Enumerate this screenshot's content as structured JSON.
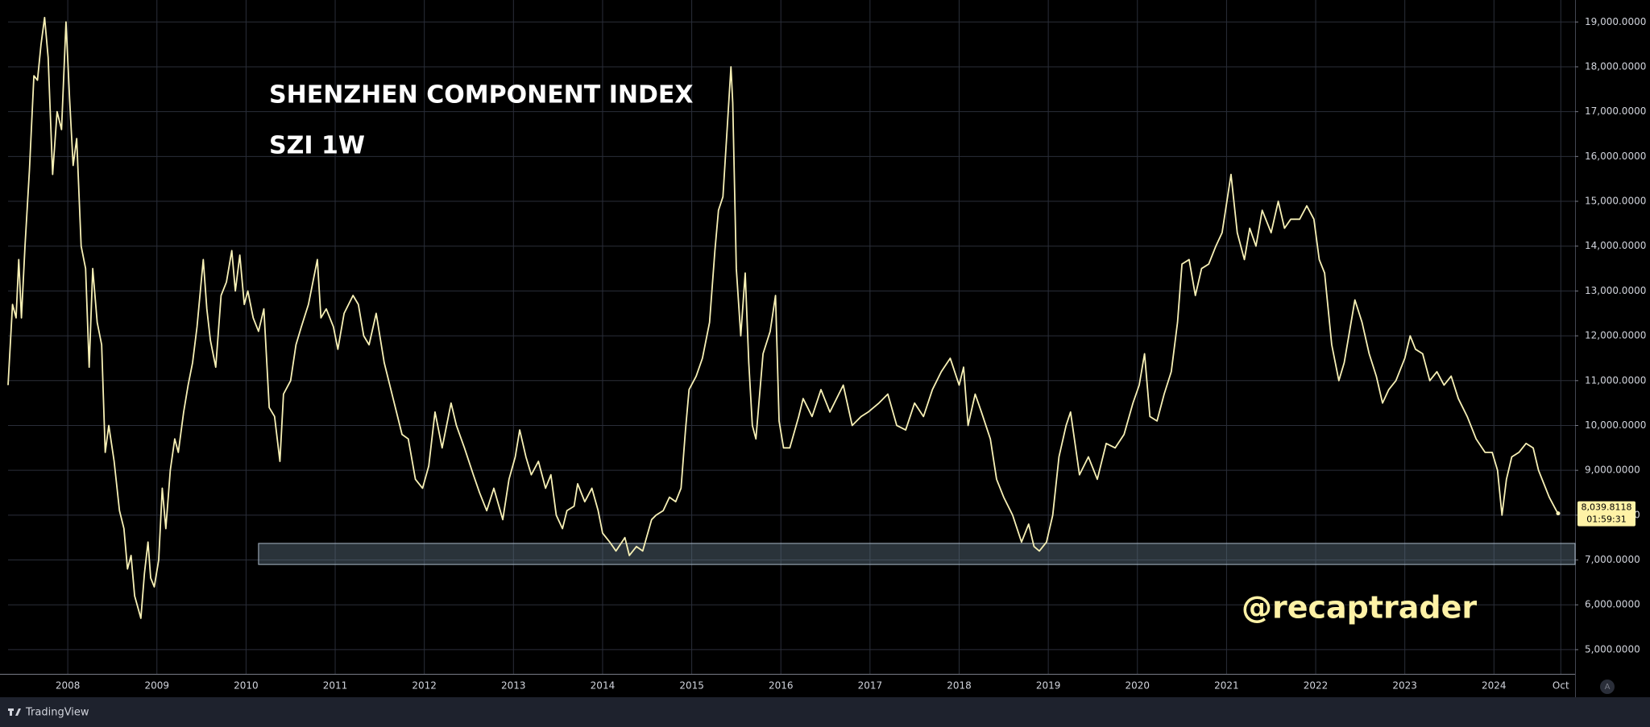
{
  "chart_data": {
    "type": "line",
    "title": "SHENZHEN COMPONENT INDEX",
    "subtitle": "SZI 1W",
    "watermark": "@recaptrader",
    "brand": "TradingView",
    "scale_button": "A",
    "grid": true,
    "xlim": [
      2007.33,
      2024.91
    ],
    "ylim": [
      4460,
      19490
    ],
    "xticks": [
      2008,
      2009,
      2010,
      2011,
      2012,
      2013,
      2014,
      2015,
      2016,
      2017,
      2018,
      2019,
      2020,
      2021,
      2022,
      2023,
      2024,
      {
        "value": 2024.75,
        "label": "Oct"
      }
    ],
    "yticks": [
      {
        "value": 5000,
        "label": "5,000.0000"
      },
      {
        "value": 6000,
        "label": "6,000.0000"
      },
      {
        "value": 7000,
        "label": "7,000.0000"
      },
      {
        "value": 8000,
        "label": "8,000.0000"
      },
      {
        "value": 9000,
        "label": "9,000.0000"
      },
      {
        "value": 10000,
        "label": "10,000.0000"
      },
      {
        "value": 11000,
        "label": "11,000.0000"
      },
      {
        "value": 12000,
        "label": "12,000.0000"
      },
      {
        "value": 13000,
        "label": "13,000.0000"
      },
      {
        "value": 14000,
        "label": "14,000.0000"
      },
      {
        "value": 15000,
        "label": "15,000.0000"
      },
      {
        "value": 16000,
        "label": "16,000.0000"
      },
      {
        "value": 17000,
        "label": "17,000.0000"
      },
      {
        "value": 18000,
        "label": "18,000.0000"
      },
      {
        "value": 19000,
        "label": "19,000.0000"
      }
    ],
    "last_price": {
      "value": 8039.8118,
      "label": "8,039.8118"
    },
    "countdown": "01:59:31",
    "zone": {
      "start": 2010.14,
      "low": 6900,
      "high": 7370,
      "color": "#5d7080"
    },
    "x": [
      2007.33,
      2007.38,
      2007.42,
      2007.45,
      2007.48,
      2007.52,
      2007.57,
      2007.62,
      2007.66,
      2007.7,
      2007.74,
      2007.78,
      2007.83,
      2007.88,
      2007.93,
      2007.98,
      2008.02,
      2008.06,
      2008.1,
      2008.15,
      2008.2,
      2008.24,
      2008.28,
      2008.33,
      2008.38,
      2008.42,
      2008.46,
      2008.52,
      2008.58,
      2008.63,
      2008.67,
      2008.71,
      2008.75,
      2008.82,
      2008.86,
      2008.9,
      2008.93,
      2008.97,
      2009.02,
      2009.06,
      2009.1,
      2009.15,
      2009.2,
      2009.24,
      2009.3,
      2009.35,
      2009.4,
      2009.45,
      2009.52,
      2009.56,
      2009.6,
      2009.66,
      2009.72,
      2009.78,
      2009.84,
      2009.88,
      2009.93,
      2009.98,
      2010.02,
      2010.08,
      2010.14,
      2010.2,
      2010.26,
      2010.32,
      2010.38,
      2010.42,
      2010.5,
      2010.56,
      2010.62,
      2010.7,
      2010.8,
      2010.84,
      2010.9,
      2010.98,
      2011.03,
      2011.1,
      2011.2,
      2011.26,
      2011.32,
      2011.38,
      2011.46,
      2011.55,
      2011.65,
      2011.75,
      2011.82,
      2011.9,
      2011.98,
      2012.05,
      2012.12,
      2012.2,
      2012.3,
      2012.36,
      2012.45,
      2012.55,
      2012.62,
      2012.7,
      2012.78,
      2012.88,
      2012.95,
      2013.02,
      2013.07,
      2013.14,
      2013.2,
      2013.28,
      2013.36,
      2013.42,
      2013.48,
      2013.55,
      2013.6,
      2013.68,
      2013.72,
      2013.8,
      2013.88,
      2013.95,
      2014.0,
      2014.08,
      2014.15,
      2014.25,
      2014.3,
      2014.38,
      2014.45,
      2014.55,
      2014.6,
      2014.68,
      2014.75,
      2014.82,
      2014.88,
      2014.93,
      2014.97,
      2015.05,
      2015.12,
      2015.2,
      2015.26,
      2015.3,
      2015.35,
      2015.4,
      2015.44,
      2015.46,
      2015.5,
      2015.55,
      2015.6,
      2015.64,
      2015.68,
      2015.72,
      2015.8,
      2015.88,
      2015.94,
      2015.98,
      2016.03,
      2016.1,
      2016.2,
      2016.25,
      2016.35,
      2016.45,
      2016.55,
      2016.7,
      2016.8,
      2016.9,
      2016.98,
      2017.1,
      2017.2,
      2017.3,
      2017.4,
      2017.5,
      2017.6,
      2017.7,
      2017.8,
      2017.9,
      2017.95,
      2018.0,
      2018.05,
      2018.1,
      2018.18,
      2018.25,
      2018.35,
      2018.42,
      2018.5,
      2018.6,
      2018.7,
      2018.78,
      2018.84,
      2018.9,
      2018.98,
      2019.05,
      2019.12,
      2019.2,
      2019.25,
      2019.35,
      2019.45,
      2019.55,
      2019.65,
      2019.75,
      2019.85,
      2019.95,
      2020.02,
      2020.08,
      2020.14,
      2020.22,
      2020.3,
      2020.38,
      2020.45,
      2020.5,
      2020.58,
      2020.65,
      2020.72,
      2020.8,
      2020.88,
      2020.95,
      2021.05,
      2021.12,
      2021.2,
      2021.26,
      2021.33,
      2021.4,
      2021.5,
      2021.58,
      2021.65,
      2021.72,
      2021.82,
      2021.9,
      2021.98,
      2022.04,
      2022.1,
      2022.18,
      2022.26,
      2022.32,
      2022.38,
      2022.44,
      2022.52,
      2022.6,
      2022.68,
      2022.75,
      2022.82,
      2022.9,
      2023.0,
      2023.06,
      2023.12,
      2023.2,
      2023.28,
      2023.36,
      2023.44,
      2023.52,
      2023.6,
      2023.7,
      2023.8,
      2023.9,
      2023.98,
      2024.04,
      2024.09,
      2024.14,
      2024.2,
      2024.28,
      2024.36,
      2024.44,
      2024.5,
      2024.56,
      2024.62,
      2024.7,
      2024.72
    ],
    "series": [
      {
        "name": "SZI",
        "color": "#f7f0b5",
        "values": [
          10900,
          12700,
          12400,
          13700,
          12400,
          14000,
          15700,
          17800,
          17700,
          18500,
          19100,
          18200,
          15600,
          17000,
          16600,
          19000,
          17300,
          15800,
          16400,
          14000,
          13500,
          11300,
          13500,
          12300,
          11800,
          9400,
          10000,
          9200,
          8100,
          7700,
          6800,
          7100,
          6200,
          5700,
          6700,
          7400,
          6600,
          6400,
          7000,
          8600,
          7700,
          9000,
          9700,
          9400,
          10300,
          10900,
          11400,
          12200,
          13700,
          12600,
          11900,
          11300,
          12900,
          13200,
          13900,
          13000,
          13800,
          12700,
          13000,
          12400,
          12100,
          12600,
          10400,
          10200,
          9200,
          10700,
          11000,
          11800,
          12200,
          12700,
          13700,
          12400,
          12600,
          12200,
          11700,
          12500,
          12900,
          12700,
          12000,
          11800,
          12500,
          11400,
          10600,
          9800,
          9700,
          8800,
          8600,
          9100,
          10300,
          9500,
          10500,
          10000,
          9500,
          8900,
          8500,
          8100,
          8600,
          7900,
          8800,
          9300,
          9900,
          9300,
          8900,
          9200,
          8600,
          8900,
          8000,
          7700,
          8100,
          8200,
          8700,
          8300,
          8600,
          8100,
          7600,
          7400,
          7200,
          7500,
          7100,
          7300,
          7200,
          7900,
          8000,
          8100,
          8400,
          8300,
          8600,
          9900,
          10800,
          11100,
          11500,
          12300,
          13900,
          14800,
          15100,
          16700,
          18000,
          17200,
          13500,
          12000,
          13400,
          11400,
          10000,
          9700,
          11600,
          12100,
          12900,
          10100,
          9500,
          9500,
          10200,
          10600,
          10200,
          10800,
          10300,
          10900,
          10000,
          10200,
          10300,
          10500,
          10700,
          10000,
          9900,
          10500,
          10200,
          10800,
          11200,
          11500,
          11200,
          10900,
          11300,
          10000,
          10700,
          10300,
          9700,
          8800,
          8400,
          8000,
          7400,
          7800,
          7300,
          7200,
          7400,
          8000,
          9300,
          10000,
          10300,
          8900,
          9300,
          8800,
          9600,
          9500,
          9800,
          10500,
          10900,
          11600,
          10200,
          10100,
          10700,
          11200,
          12300,
          13600,
          13700,
          12900,
          13500,
          13600,
          14000,
          14300,
          15600,
          14300,
          13700,
          14400,
          14000,
          14800,
          14300,
          15000,
          14400,
          14600,
          14600,
          14900,
          14600,
          13700,
          13400,
          11800,
          11000,
          11400,
          12100,
          12800,
          12300,
          11600,
          11100,
          10500,
          10800,
          11000,
          11500,
          12000,
          11700,
          11600,
          11000,
          11200,
          10900,
          11100,
          10600,
          10200,
          9700,
          9400,
          9400,
          9000,
          8000,
          8800,
          9300,
          9400,
          9600,
          9500,
          9000,
          8700,
          8400,
          8100,
          8040
        ]
      }
    ]
  }
}
